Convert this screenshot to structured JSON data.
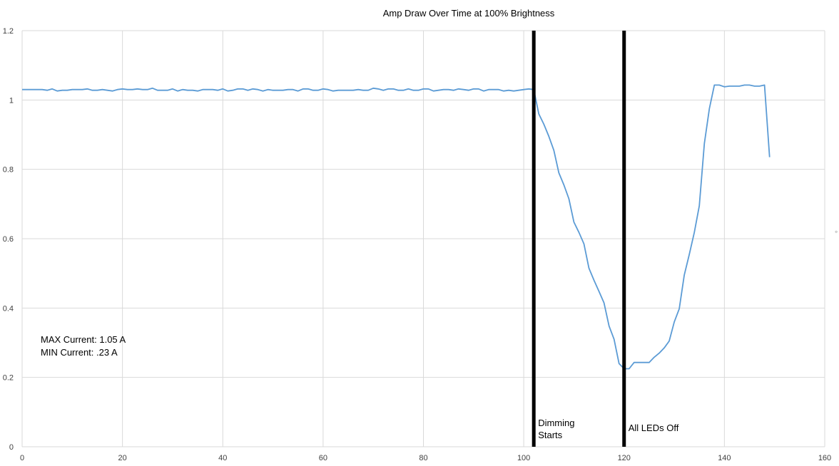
{
  "chart_data": {
    "type": "line",
    "title": "Amp Draw Over Time at 100% Brightness",
    "xlabel": "",
    "ylabel": "",
    "xlim": [
      0,
      160
    ],
    "ylim": [
      0,
      1.2
    ],
    "x_ticks": [
      0,
      20,
      40,
      60,
      80,
      100,
      120,
      140,
      160
    ],
    "y_ticks": [
      0,
      0.2,
      0.4,
      0.6,
      0.8,
      1,
      1.2
    ],
    "y_tick_labels": [
      "0",
      "0.2",
      "0.4",
      "0.6",
      "0.8",
      "1",
      "1.2"
    ],
    "grid": true,
    "series": [
      {
        "color": "#5b9bd5",
        "x": [
          0,
          1,
          2,
          3,
          4,
          5,
          6,
          7,
          8,
          9,
          10,
          11,
          12,
          13,
          14,
          15,
          16,
          17,
          18,
          19,
          20,
          21,
          22,
          23,
          24,
          25,
          26,
          27,
          28,
          29,
          30,
          31,
          32,
          33,
          34,
          35,
          36,
          37,
          38,
          39,
          40,
          41,
          42,
          43,
          44,
          45,
          46,
          47,
          48,
          49,
          50,
          51,
          52,
          53,
          54,
          55,
          56,
          57,
          58,
          59,
          60,
          61,
          62,
          63,
          64,
          65,
          66,
          67,
          68,
          69,
          70,
          71,
          72,
          73,
          74,
          75,
          76,
          77,
          78,
          79,
          80,
          81,
          82,
          83,
          84,
          85,
          86,
          87,
          88,
          89,
          90,
          91,
          92,
          93,
          94,
          95,
          96,
          97,
          98,
          99,
          100,
          101,
          102,
          103,
          104,
          105,
          106,
          107,
          108,
          109,
          110,
          111,
          112,
          113,
          114,
          115,
          116,
          117,
          118,
          119,
          120,
          121,
          122,
          123,
          124,
          125,
          126,
          127,
          128,
          129,
          130,
          131,
          132,
          133,
          134,
          135,
          136,
          137,
          138,
          139,
          140,
          141,
          142,
          143,
          144,
          145,
          146,
          147,
          148,
          149
        ],
        "y": [
          1.03,
          1.03,
          1.03,
          1.03,
          1.03,
          1.028,
          1.032,
          1.026,
          1.028,
          1.028,
          1.03,
          1.03,
          1.03,
          1.032,
          1.028,
          1.028,
          1.03,
          1.028,
          1.026,
          1.03,
          1.032,
          1.03,
          1.03,
          1.032,
          1.03,
          1.03,
          1.034,
          1.028,
          1.028,
          1.028,
          1.032,
          1.026,
          1.03,
          1.028,
          1.028,
          1.026,
          1.03,
          1.03,
          1.03,
          1.028,
          1.032,
          1.026,
          1.028,
          1.032,
          1.032,
          1.028,
          1.032,
          1.03,
          1.026,
          1.03,
          1.028,
          1.028,
          1.028,
          1.03,
          1.03,
          1.026,
          1.032,
          1.032,
          1.028,
          1.028,
          1.032,
          1.03,
          1.026,
          1.028,
          1.028,
          1.028,
          1.028,
          1.03,
          1.028,
          1.028,
          1.034,
          1.032,
          1.028,
          1.032,
          1.032,
          1.028,
          1.028,
          1.032,
          1.028,
          1.028,
          1.032,
          1.032,
          1.026,
          1.028,
          1.03,
          1.03,
          1.028,
          1.032,
          1.03,
          1.028,
          1.032,
          1.032,
          1.026,
          1.03,
          1.03,
          1.03,
          1.026,
          1.028,
          1.026,
          1.028,
          1.03,
          1.032,
          1.03,
          0.96,
          0.93,
          0.895,
          0.855,
          0.79,
          0.755,
          0.715,
          0.648,
          0.618,
          0.585,
          0.515,
          0.48,
          0.448,
          0.415,
          0.348,
          0.31,
          0.24,
          0.225,
          0.225,
          0.243,
          0.243,
          0.243,
          0.243,
          0.258,
          0.27,
          0.285,
          0.305,
          0.36,
          0.398,
          0.495,
          0.555,
          0.618,
          0.695,
          0.875,
          0.975,
          1.043,
          1.043,
          1.038,
          1.04,
          1.04,
          1.04,
          1.043,
          1.043,
          1.04,
          1.04,
          1.043,
          0.835
        ]
      }
    ],
    "vertical_markers": [
      {
        "x": 102,
        "label": [
          "Dimming",
          "Starts"
        ]
      },
      {
        "x": 120,
        "label": [
          "All LEDs Off"
        ]
      }
    ],
    "annotations": {
      "max_current": "MAX Current: 1.05 A",
      "min_current": "MIN Current: .23 A"
    },
    "colors": {
      "series": "#5b9bd5",
      "markers": "#000000",
      "grid": "#d9d9d9"
    }
  }
}
